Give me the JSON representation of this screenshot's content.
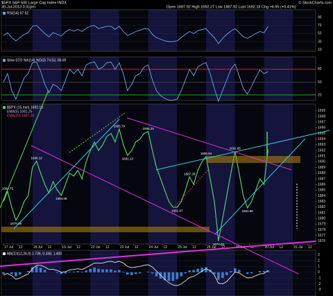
{
  "header": {
    "title": "$SPX S&P 500 Large Cap Index INDX",
    "credit": "© StockCharts.com",
    "date": "30-Jul-2013 3:31pm",
    "quote": "Open 1687.92 High 1692.27 Low 1687.92 Last 1692.18 Chg +6.95 (+0.41%)"
  },
  "chart_data": [
    {
      "type": "line",
      "ylim": [
        6,
        109
      ],
      "yticks": [
        90,
        70,
        50,
        30,
        10
      ],
      "grid": true,
      "series": [
        {
          "name": "RSI(14) 67.52",
          "color": "#6aa8e8",
          "type": "line",
          "values": [
            45,
            52,
            40,
            32,
            40,
            48,
            52,
            68,
            70,
            60,
            50,
            42,
            52,
            48,
            44,
            54,
            60,
            56,
            60,
            55,
            63,
            68,
            70,
            62,
            65,
            68,
            68,
            60,
            68,
            55,
            45,
            50,
            55,
            58,
            62,
            62,
            48,
            40,
            36,
            32,
            30,
            30,
            32,
            40,
            48,
            55,
            50,
            57,
            60,
            62,
            50,
            40,
            25,
            38,
            48,
            56,
            62,
            52,
            42,
            38,
            44,
            50,
            55,
            52,
            67.52
          ]
        }
      ]
    },
    {
      "type": "line",
      "ylim": [
        7,
        109
      ],
      "yticks": [
        80,
        50,
        20
      ],
      "grid": true,
      "tick_colors": [
        "#e03030",
        "#444444",
        "#20c020"
      ],
      "series": [
        {
          "name": "Slow STO %K(14) %D(3) 74.53, 69.09",
          "color": "#6aa8e8",
          "type": "line",
          "values": [
            50,
            70,
            30,
            10,
            35,
            60,
            70,
            95,
            97,
            75,
            45,
            25,
            45,
            40,
            30,
            55,
            80,
            70,
            80,
            65,
            90,
            95,
            97,
            80,
            85,
            95,
            97,
            80,
            95,
            70,
            30,
            45,
            65,
            70,
            85,
            90,
            55,
            30,
            18,
            12,
            8,
            8,
            10,
            30,
            55,
            80,
            65,
            85,
            92,
            95,
            70,
            35,
            5,
            30,
            55,
            80,
            92,
            65,
            35,
            22,
            40,
            60,
            78,
            70,
            74.53
          ]
        }
      ]
    },
    {
      "type": "line",
      "xlim": [
        -0.5,
        75.5
      ],
      "ylim": [
        1675.5,
        1700.2
      ],
      "yticks": [
        1676,
        1677,
        1678,
        1679,
        1680,
        1681,
        1682,
        1683,
        1684,
        1685,
        1686,
        1687,
        1688,
        1689,
        1690,
        1691,
        1692,
        1693,
        1694,
        1695,
        1696,
        1697,
        1698,
        1699
      ],
      "xticks": [
        {
          "value": 0,
          "label": "17 Jul"
        },
        {
          "value": 3.5,
          "label": "12"
        },
        {
          "value": 7,
          "label": "18 Jul"
        },
        {
          "value": 10.5,
          "label": "12"
        },
        {
          "value": 14,
          "label": "19 Jul"
        },
        {
          "value": 17.5,
          "label": "12"
        },
        {
          "value": 21,
          "label": "22 Jul"
        },
        {
          "value": 24.5,
          "label": "12"
        },
        {
          "value": 28,
          "label": "23 Jul"
        },
        {
          "value": 31.5,
          "label": "12"
        },
        {
          "value": 35,
          "label": "24 Jul"
        },
        {
          "value": 38.5,
          "label": "12"
        },
        {
          "value": 42,
          "label": "25 Jul"
        },
        {
          "value": 45.5,
          "label": "12"
        },
        {
          "value": 49,
          "label": "26 Jul"
        },
        {
          "value": 52.5,
          "label": "12"
        },
        {
          "value": 56,
          "label": "29 Jul"
        },
        {
          "value": 59.5,
          "label": "12"
        },
        {
          "value": 63,
          "label": "30 Jul"
        },
        {
          "value": 66.5,
          "label": "12"
        },
        {
          "value": 70,
          "label": "31 Jul"
        },
        {
          "value": 73.5,
          "label": "12"
        }
      ],
      "grid": false,
      "annotations": [
        "EMA(5) 1691.26",
        "EMA(20) 1687.26"
      ],
      "series": [
        {
          "name": "$SPX (15 min) 1692.18",
          "color": "#4fd06a",
          "type": "line",
          "values": [
            1683,
            1684.75,
            1682,
            1679.69,
            1681,
            1683,
            1684,
            1689,
            1690.12,
            1688,
            1686,
            1684.5,
            1686.5,
            1685,
            1684.08,
            1686,
            1688,
            1687.5,
            1688.5,
            1687,
            1690,
            1692,
            1693.5,
            1692,
            1693,
            1694.5,
            1695,
            1693.5,
            1695.79,
            1693,
            1691.13,
            1692,
            1693.5,
            1694,
            1695,
            1695.34,
            1692,
            1689,
            1687,
            1685,
            1683,
            1682,
            1681.97,
            1683,
            1685,
            1687.35,
            1686,
            1688.5,
            1690,
            1690.94,
            1687,
            1683,
            1676.03,
            1680,
            1684,
            1688,
            1691.85,
            1688,
            1684,
            1681.86,
            1683,
            1685,
            1687,
            1686,
            1692.18
          ],
          "value_labels": [
            null,
            "1684.75",
            null,
            "1679.69",
            null,
            null,
            null,
            null,
            "1690.12",
            null,
            null,
            null,
            null,
            null,
            "1684.08",
            null,
            null,
            null,
            null,
            null,
            null,
            null,
            null,
            null,
            null,
            null,
            null,
            null,
            "1695.79",
            null,
            "1691.13",
            null,
            null,
            null,
            null,
            "1695.34",
            null,
            null,
            null,
            null,
            null,
            null,
            "1681.97",
            null,
            null,
            "1687.35",
            null,
            null,
            null,
            "1690.94",
            null,
            null,
            "1676.03",
            null,
            null,
            null,
            "1691.85",
            null,
            null,
            "1681.86",
            null,
            null,
            null,
            null,
            null
          ]
        }
      ]
    },
    {
      "type": "bar",
      "ylim": [
        -4.1,
        3.8
      ],
      "yticks": [
        3,
        2,
        1,
        0,
        -1,
        -2,
        -3
      ],
      "grid": true,
      "series": [
        {
          "color": "#3a7fd0",
          "type": "bar",
          "values": [
            -0.3,
            0,
            -0.3,
            -0.7,
            -0.4,
            0,
            0.2,
            0.9,
            1.1,
            0.8,
            0.4,
            0,
            0,
            -0.1,
            -0.3,
            -0.2,
            0.1,
            0.1,
            0.2,
            0.1,
            0.3,
            0.6,
            0.8,
            0.6,
            0.5,
            0.5,
            0.5,
            0.3,
            0.4,
            0.1,
            -0.4,
            -0.5,
            -0.3,
            -0.2,
            0,
            0.1,
            -0.2,
            -0.7,
            -1.1,
            -1.4,
            -1.5,
            -1.5,
            -1.2,
            -0.7,
            -0.2,
            0.3,
            0.4,
            0.6,
            0.8,
            0.9,
            0.4,
            -0.3,
            -1.3,
            -1.0,
            -0.5,
            0.2,
            0.7,
            0.4,
            0,
            -0.3,
            -0.2,
            0,
            0.2,
            0.2,
            0.3
          ]
        },
        {
          "name": "MACD(12,26,9) 1.736, 0.338, 1.400",
          "color": "#e8e8e8",
          "type": "line",
          "values": [
            -0.5,
            -0.2,
            -0.6,
            -1.2,
            -1.0,
            -0.6,
            -0.3,
            0.6,
            1.2,
            1.2,
            0.9,
            0.5,
            0.5,
            0.3,
            0.0,
            0.1,
            0.4,
            0.5,
            0.6,
            0.5,
            0.8,
            1.2,
            1.6,
            1.6,
            1.6,
            1.8,
            1.9,
            1.7,
            1.9,
            1.6,
            1.0,
            0.8,
            0.9,
            1.0,
            1.2,
            1.3,
            0.9,
            0.2,
            -0.5,
            -1.2,
            -1.8,
            -2.2,
            -2.3,
            -2.0,
            -1.5,
            -0.9,
            -0.7,
            -0.3,
            0.2,
            0.6,
            0.3,
            -0.5,
            -1.9,
            -2.0,
            -1.6,
            -0.8,
            0.0,
            -0.1,
            -0.6,
            -1.0,
            -0.9,
            -0.6,
            -0.3,
            -0.2,
            0.3
          ]
        }
      ]
    }
  ]
}
